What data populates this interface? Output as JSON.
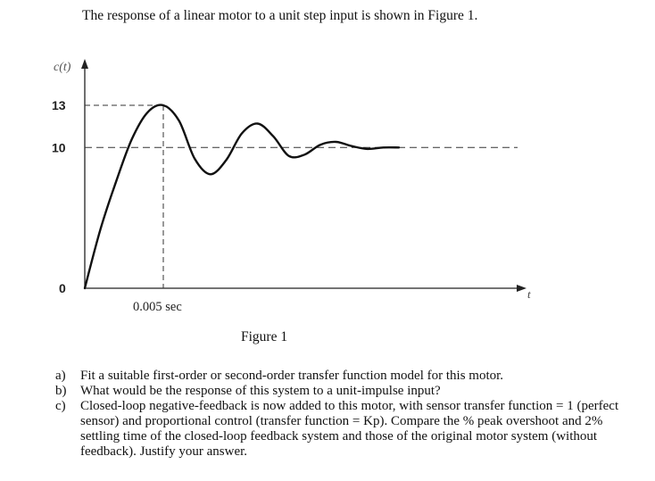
{
  "intro": "The response of a linear motor to a unit step input is shown in Figure 1.",
  "figure": {
    "caption": "Figure 1"
  },
  "chart_data": {
    "type": "line",
    "ylabel": "c(t)",
    "xlabel": "t",
    "yticks": [
      "13",
      "10",
      "0"
    ],
    "xticks": [
      "0.005 sec"
    ],
    "ylim": [
      0,
      14.5
    ],
    "xlim": [
      0,
      0.0216
    ],
    "grid": false,
    "annotations": [
      "dashed line at c = 13 up to the peak",
      "dashed line at c = 10 (final value)",
      "dashed vertical line at t = 0.005 sec"
    ],
    "series": [
      {
        "final_value": 10,
        "peak_value": 13,
        "peak_time": 0.005,
        "x": [
          0,
          0.001,
          0.002,
          0.003,
          0.004,
          0.005,
          0.006,
          0.007,
          0.008,
          0.009,
          0.01,
          0.011,
          0.012,
          0.013,
          0.014,
          0.015,
          0.016,
          0.017,
          0.018,
          0.019,
          0.02
        ],
        "y": [
          0,
          4.2,
          7.6,
          10.6,
          12.5,
          13.0,
          11.9,
          9.2,
          8.1,
          9.1,
          11.0,
          11.7,
          10.8,
          9.4,
          9.5,
          10.2,
          10.4,
          10.1,
          9.9,
          10.0,
          10.0
        ]
      }
    ]
  },
  "questions": [
    {
      "mark": "a)",
      "text": "Fit a suitable first-order or second-order transfer function model for this motor."
    },
    {
      "mark": "b)",
      "text": "What would be the response of this system to a unit-impulse input?"
    },
    {
      "mark": "c)",
      "text": "Closed-loop negative-feedback is now added to this motor, with sensor transfer function = 1 (perfect sensor) and proportional control (transfer function = Kp). Compare the % peak overshoot and 2% settling time of the closed-loop feedback system and those of the original motor system (without feedback). Justify your answer."
    }
  ]
}
